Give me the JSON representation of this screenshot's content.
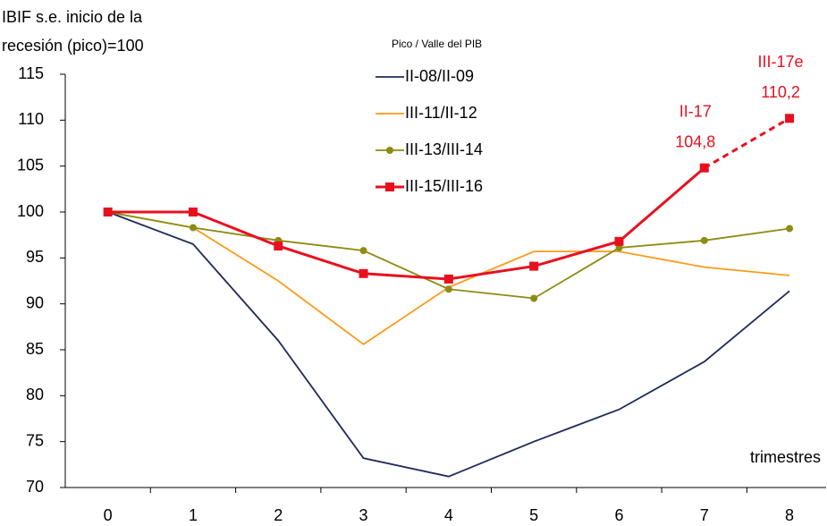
{
  "chart_data": {
    "type": "line",
    "ylabel": [
      "IBIF s.e. inicio de la",
      "recesión (pico)=100"
    ],
    "xlabel": "trimestres",
    "legend_title": "Pico / Valle del PIB",
    "categories": [
      "0",
      "1",
      "2",
      "3",
      "4",
      "5",
      "6",
      "7",
      "8"
    ],
    "ylim": [
      70,
      115
    ],
    "yticks": [
      70,
      75,
      80,
      85,
      90,
      95,
      100,
      105,
      110,
      115
    ],
    "grid": false,
    "series": [
      {
        "name": "II-08/II-09",
        "color": "#1f2a5c",
        "values": [
          100,
          96.5,
          86,
          73.2,
          71.2,
          75,
          78.5,
          83.7,
          91.4
        ]
      },
      {
        "name": "III-11/II-12",
        "color": "#ff9a1a",
        "values": [
          100,
          98.3,
          92.5,
          85.6,
          91.8,
          95.7,
          95.7,
          94,
          93.1
        ]
      },
      {
        "name": "III-13/III-14",
        "color": "#8c8c14",
        "marker": "circle",
        "values": [
          100,
          98.3,
          96.9,
          95.8,
          91.6,
          90.6,
          96.1,
          96.9,
          98.2
        ]
      },
      {
        "name": "III-15/III-16",
        "color": "#e8101f",
        "marker": "square",
        "dashed_from_index": 7,
        "values": [
          100,
          100,
          96.3,
          93.3,
          92.7,
          94.1,
          96.8,
          104.8,
          110.2
        ],
        "value_labels": [
          null,
          null,
          null,
          null,
          null,
          null,
          null,
          "104,8",
          "110,2"
        ],
        "point_labels": [
          null,
          null,
          null,
          null,
          null,
          null,
          null,
          "II-17",
          "III-17e"
        ]
      }
    ]
  }
}
